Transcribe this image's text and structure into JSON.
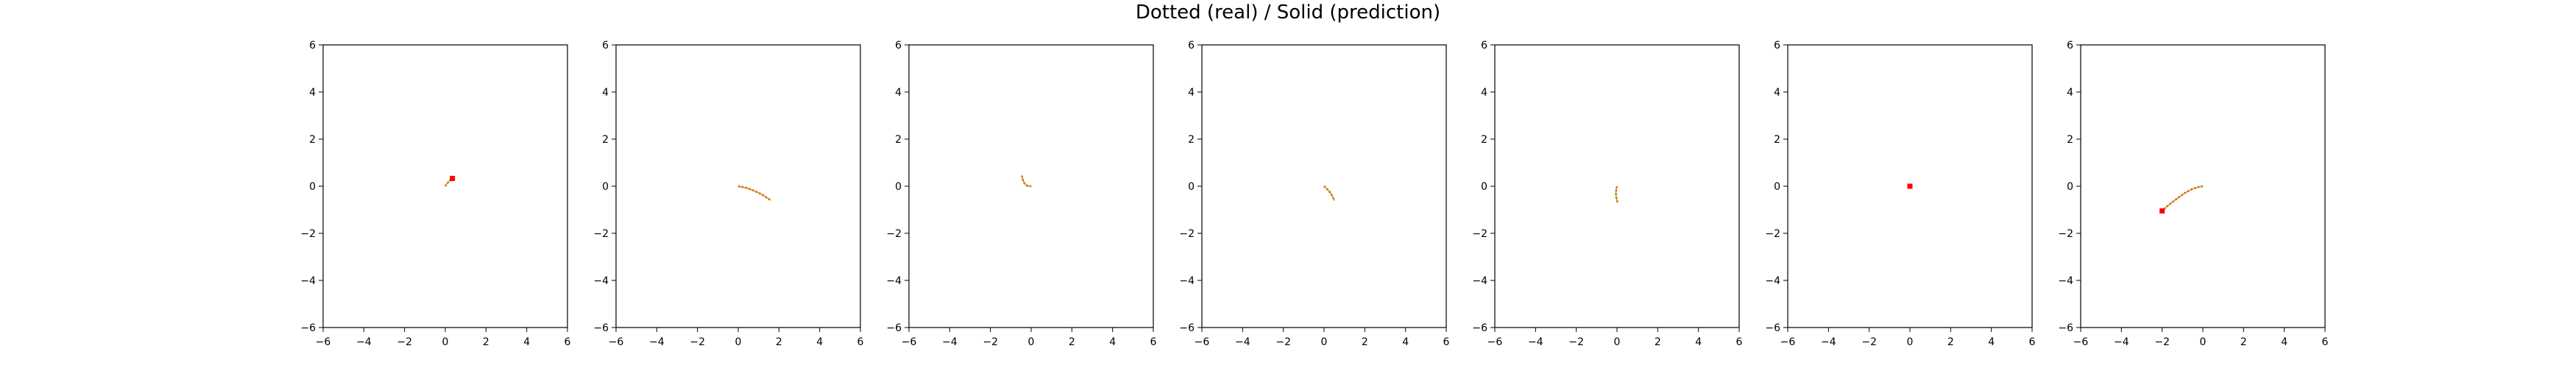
{
  "figure": {
    "title": "Dotted (real) / Solid (prediction)"
  },
  "chart_data": [
    {
      "type": "line",
      "xlim": [
        -6,
        6
      ],
      "ylim": [
        -6,
        6
      ],
      "ticks": [
        -6,
        -4,
        -2,
        0,
        2,
        4,
        6
      ],
      "grid": false,
      "series": [
        {
          "style": "dotted",
          "color": "#006400",
          "x": [
            0.0,
            0.05,
            0.1,
            0.17,
            0.23,
            0.28,
            0.32,
            0.35
          ],
          "y": [
            0.0,
            0.07,
            0.13,
            0.19,
            0.24,
            0.28,
            0.31,
            0.33
          ]
        },
        {
          "style": "solid",
          "color": "#ff7f0e",
          "x": [
            0.0,
            0.05,
            0.1,
            0.17,
            0.23,
            0.28,
            0.32,
            0.35
          ],
          "y": [
            0.0,
            0.07,
            0.13,
            0.19,
            0.24,
            0.28,
            0.31,
            0.33
          ]
        },
        {
          "style": "marker",
          "color": "#ff0000",
          "x": [
            0.35
          ],
          "y": [
            0.33
          ]
        }
      ]
    },
    {
      "type": "line",
      "xlim": [
        -6,
        6
      ],
      "ylim": [
        -6,
        6
      ],
      "ticks": [
        -6,
        -4,
        -2,
        0,
        2,
        4,
        6
      ],
      "grid": false,
      "series": [
        {
          "style": "dotted",
          "color": "#006400",
          "x": [
            0.0,
            0.2,
            0.4,
            0.6,
            0.8,
            1.0,
            1.2,
            1.4,
            1.6
          ],
          "y": [
            0.0,
            -0.03,
            -0.07,
            -0.13,
            -0.2,
            -0.28,
            -0.37,
            -0.48,
            -0.6
          ]
        },
        {
          "style": "solid",
          "color": "#ff7f0e",
          "x": [
            0.0,
            0.2,
            0.4,
            0.6,
            0.8,
            1.0,
            1.2,
            1.4,
            1.6
          ],
          "y": [
            0.0,
            -0.03,
            -0.07,
            -0.13,
            -0.2,
            -0.28,
            -0.37,
            -0.48,
            -0.6
          ]
        }
      ]
    },
    {
      "type": "line",
      "xlim": [
        -6,
        6
      ],
      "ylim": [
        -6,
        6
      ],
      "ticks": [
        -6,
        -4,
        -2,
        0,
        2,
        4,
        6
      ],
      "grid": false,
      "series": [
        {
          "style": "dotted",
          "color": "#006400",
          "x": [
            -0.45,
            -0.42,
            -0.35,
            -0.25,
            -0.15,
            -0.05,
            0.0
          ],
          "y": [
            0.45,
            0.3,
            0.15,
            0.05,
            0.0,
            0.0,
            0.02
          ]
        },
        {
          "style": "solid",
          "color": "#ff7f0e",
          "x": [
            -0.45,
            -0.42,
            -0.35,
            -0.25,
            -0.15,
            -0.05,
            0.0
          ],
          "y": [
            0.45,
            0.3,
            0.15,
            0.05,
            0.0,
            0.0,
            0.02
          ]
        }
      ]
    },
    {
      "type": "line",
      "xlim": [
        -6,
        6
      ],
      "ylim": [
        -6,
        6
      ],
      "ticks": [
        -6,
        -4,
        -2,
        0,
        2,
        4,
        6
      ],
      "grid": false,
      "series": [
        {
          "style": "dotted",
          "color": "#006400",
          "x": [
            0.0,
            0.1,
            0.2,
            0.3,
            0.38,
            0.45,
            0.5
          ],
          "y": [
            0.0,
            -0.08,
            -0.17,
            -0.27,
            -0.38,
            -0.5,
            -0.62
          ]
        },
        {
          "style": "solid",
          "color": "#ff7f0e",
          "x": [
            0.0,
            0.1,
            0.2,
            0.3,
            0.38,
            0.45,
            0.5
          ],
          "y": [
            0.0,
            -0.08,
            -0.17,
            -0.27,
            -0.38,
            -0.5,
            -0.62
          ]
        }
      ]
    },
    {
      "type": "line",
      "xlim": [
        -6,
        6
      ],
      "ylim": [
        -6,
        6
      ],
      "ticks": [
        -6,
        -4,
        -2,
        0,
        2,
        4,
        6
      ],
      "grid": false,
      "series": [
        {
          "style": "dotted",
          "color": "#006400",
          "x": [
            0.0,
            -0.03,
            -0.05,
            -0.05,
            -0.03,
            0.0,
            0.02
          ],
          "y": [
            0.0,
            -0.12,
            -0.25,
            -0.38,
            -0.5,
            -0.6,
            -0.7
          ]
        },
        {
          "style": "solid",
          "color": "#ff7f0e",
          "x": [
            0.0,
            -0.03,
            -0.05,
            -0.05,
            -0.03,
            0.0,
            0.02
          ],
          "y": [
            0.0,
            -0.12,
            -0.25,
            -0.38,
            -0.5,
            -0.6,
            -0.7
          ]
        }
      ]
    },
    {
      "type": "line",
      "xlim": [
        -6,
        6
      ],
      "ylim": [
        -6,
        6
      ],
      "ticks": [
        -6,
        -4,
        -2,
        0,
        2,
        4,
        6
      ],
      "grid": false,
      "series": [
        {
          "style": "marker",
          "color": "#ff0000",
          "x": [
            0.0
          ],
          "y": [
            0.0
          ]
        }
      ]
    },
    {
      "type": "line",
      "xlim": [
        -6,
        6
      ],
      "ylim": [
        -6,
        6
      ],
      "ticks": [
        -6,
        -4,
        -2,
        0,
        2,
        4,
        6
      ],
      "grid": false,
      "series": [
        {
          "style": "dotted",
          "color": "#006400",
          "x": [
            0.0,
            -0.3,
            -0.6,
            -0.9,
            -1.2,
            -1.5,
            -1.8,
            -2.0
          ],
          "y": [
            0.0,
            -0.05,
            -0.15,
            -0.3,
            -0.48,
            -0.68,
            -0.88,
            -1.05
          ]
        },
        {
          "style": "solid",
          "color": "#ff7f0e",
          "x": [
            0.0,
            -0.3,
            -0.6,
            -0.9,
            -1.2,
            -1.5,
            -1.8,
            -2.0
          ],
          "y": [
            0.0,
            -0.05,
            -0.15,
            -0.3,
            -0.48,
            -0.68,
            -0.88,
            -1.05
          ]
        },
        {
          "style": "marker",
          "color": "#ff0000",
          "x": [
            -2.0
          ],
          "y": [
            -1.05
          ]
        }
      ]
    }
  ]
}
